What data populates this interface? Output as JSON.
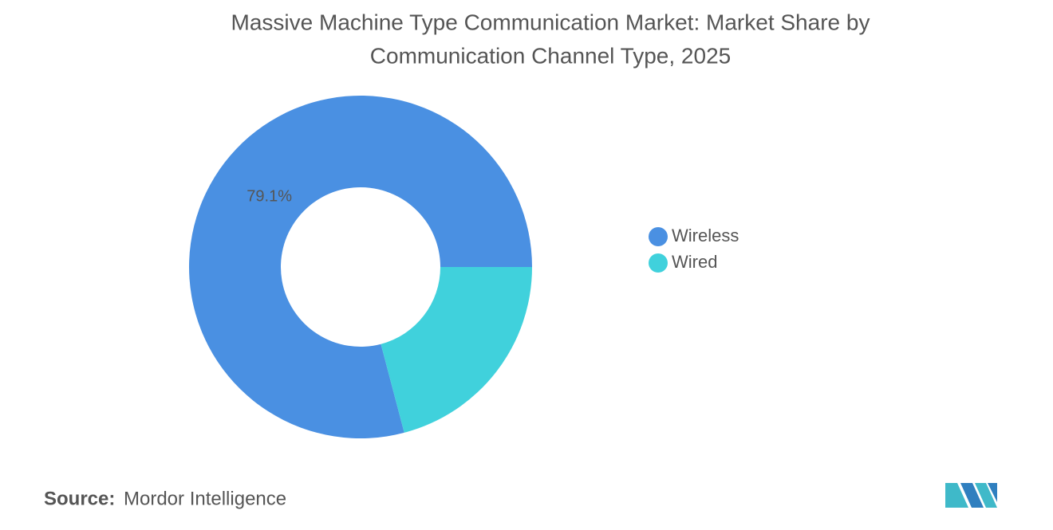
{
  "chart_data": {
    "type": "donut",
    "title": [
      "Massive Machine Type Communication Market: Market Share by",
      "Communication Channel Type, 2025"
    ],
    "categories": [
      "Wireless",
      "Wired"
    ],
    "values": [
      79.1,
      20.9
    ],
    "value_labels": [
      "79.1%",
      null
    ],
    "colors": [
      "#4a90e2",
      "#40d1dc"
    ],
    "source_label": "Source:",
    "source": "Mordor Intelligence"
  }
}
